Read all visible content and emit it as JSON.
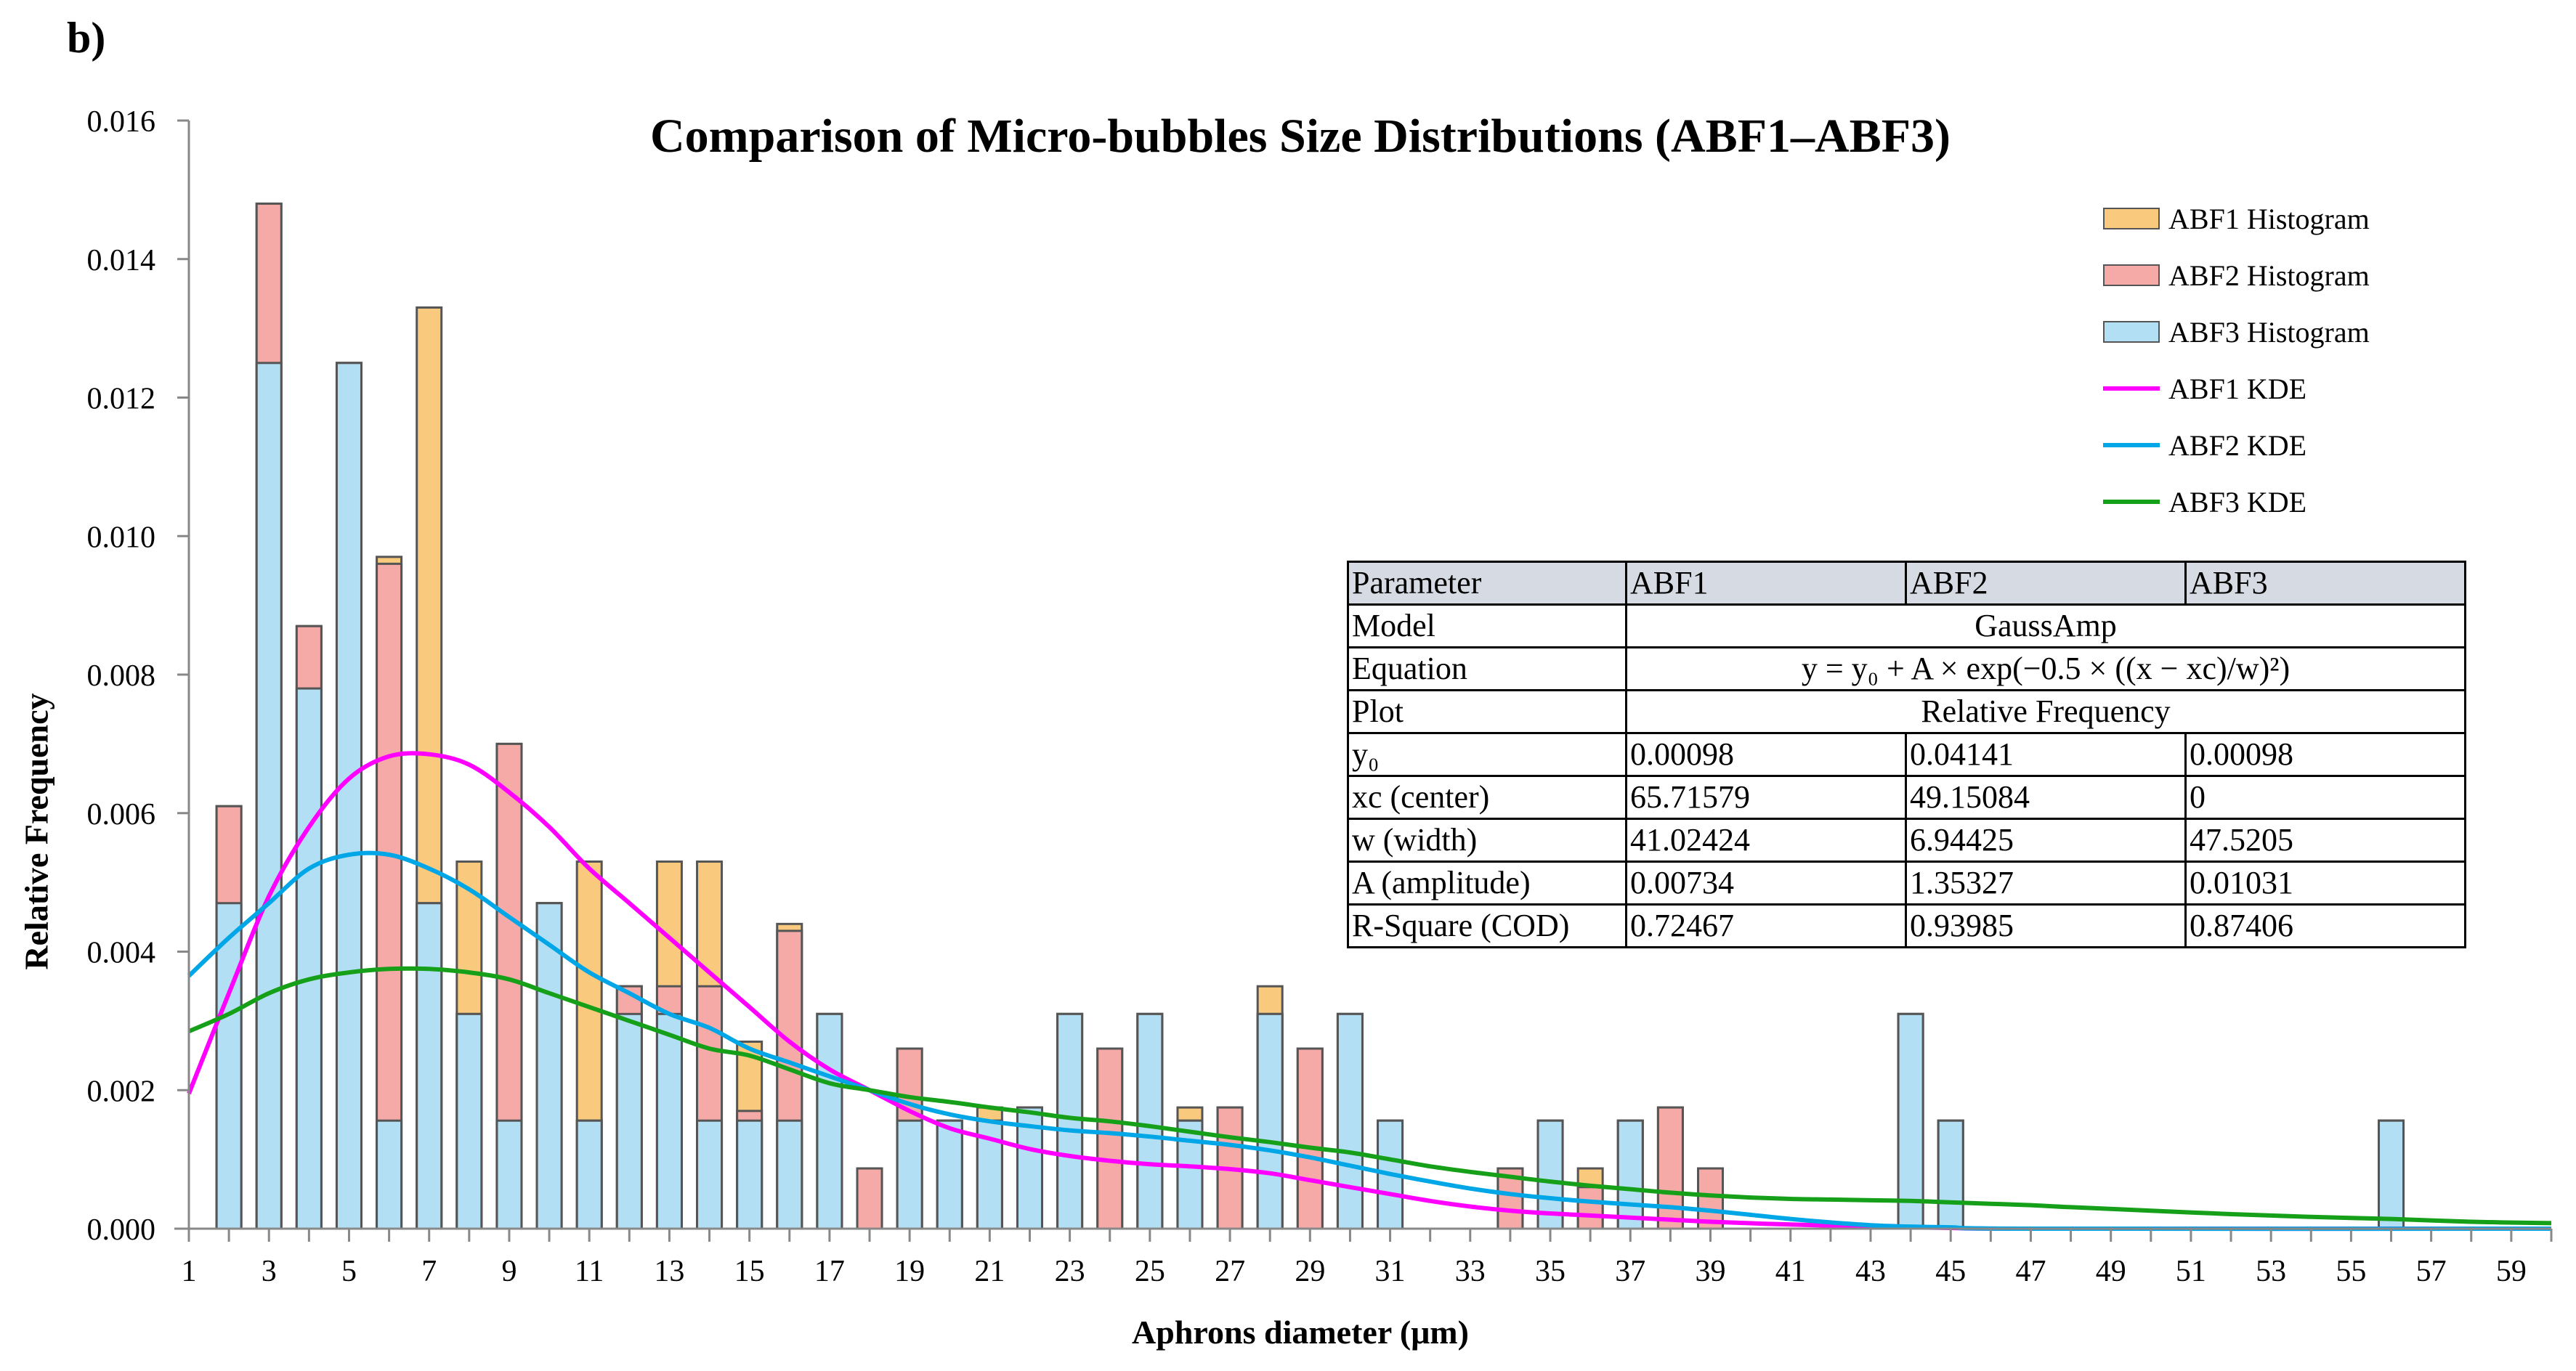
{
  "panel_label": "b)",
  "chart_data": {
    "type": "bar",
    "title": "Comparison of Micro-bubbles Size Distributions (ABF1–ABF3)",
    "xlabel": "Aphrons diameter (μm)",
    "ylabel": "Relative Frequency",
    "xlim": [
      1,
      60
    ],
    "ylim": [
      0,
      0.016
    ],
    "x_ticks": [
      1,
      3,
      5,
      7,
      9,
      11,
      13,
      15,
      17,
      19,
      21,
      23,
      25,
      27,
      29,
      31,
      33,
      35,
      37,
      39,
      41,
      43,
      45,
      47,
      49,
      51,
      53,
      55,
      57,
      59
    ],
    "y_ticks": [
      "0.000",
      "0.002",
      "0.004",
      "0.006",
      "0.008",
      "0.010",
      "0.012",
      "0.014",
      "0.016"
    ],
    "colors": {
      "abf1_hist": "#f9c97e",
      "abf2_hist": "#f5aaa8",
      "abf3_hist": "#b3dff5",
      "bar_edge": "#555555",
      "abf1_kde": "#ff00ff",
      "abf2_kde": "#00a6e6",
      "abf3_kde": "#16a01a"
    },
    "legend": [
      {
        "label": "ABF1 Histogram",
        "kind": "bar",
        "color": "#f9c97e"
      },
      {
        "label": "ABF2 Histogram",
        "kind": "bar",
        "color": "#f5aaa8"
      },
      {
        "label": "ABF3 Histogram",
        "kind": "bar",
        "color": "#b3dff5"
      },
      {
        "label": "ABF1 KDE",
        "kind": "line",
        "color": "#ff00ff"
      },
      {
        "label": "ABF2 KDE",
        "kind": "line",
        "color": "#00a6e6"
      },
      {
        "label": "ABF3 KDE",
        "kind": "line",
        "color": "#16a01a"
      }
    ],
    "bars": [
      {
        "x": 2,
        "abf3": 0.0047,
        "abf2": 0.0061,
        "abf1": 0.0061
      },
      {
        "x": 3,
        "abf3": 0.0125,
        "abf2": 0.0148,
        "abf1": 0.0148
      },
      {
        "x": 4,
        "abf3": 0.0078,
        "abf2": 0.0087,
        "abf1": 0.0087
      },
      {
        "x": 5,
        "abf3": 0.0125,
        "abf2": 0.0125,
        "abf1": 0.0125
      },
      {
        "x": 6,
        "abf3": 0.00156,
        "abf2": 0.0096,
        "abf1": 0.0097
      },
      {
        "x": 7,
        "abf3": 0.0047,
        "abf2": 0.0047,
        "abf1": 0.0133
      },
      {
        "x": 8,
        "abf3": 0.0031,
        "abf2": 0.0031,
        "abf1": 0.0053
      },
      {
        "x": 9,
        "abf3": 0.00156,
        "abf2": 0.007,
        "abf1": 0.007
      },
      {
        "x": 10,
        "abf3": 0.0047,
        "abf2": 0.0047,
        "abf1": 0.0047
      },
      {
        "x": 11,
        "abf3": 0.00156,
        "abf2": 0.00156,
        "abf1": 0.0053
      },
      {
        "x": 12,
        "abf3": 0.0031,
        "abf2": 0.0035,
        "abf1": 0.0035
      },
      {
        "x": 13,
        "abf3": 0.0031,
        "abf2": 0.0035,
        "abf1": 0.0053
      },
      {
        "x": 14,
        "abf3": 0.00156,
        "abf2": 0.0035,
        "abf1": 0.0053
      },
      {
        "x": 15,
        "abf3": 0.00156,
        "abf2": 0.0017,
        "abf1": 0.0027
      },
      {
        "x": 16,
        "abf3": 0.00156,
        "abf2": 0.0043,
        "abf1": 0.0044
      },
      {
        "x": 17,
        "abf3": 0.0031,
        "abf2": 0.0031,
        "abf1": 0.0031
      },
      {
        "x": 18,
        "abf3": 0,
        "abf2": 0.00087,
        "abf1": 0.00087
      },
      {
        "x": 19,
        "abf3": 0.00156,
        "abf2": 0.0026,
        "abf1": 0.0026
      },
      {
        "x": 20,
        "abf3": 0.00156,
        "abf2": 0.00156,
        "abf1": 0.00156
      },
      {
        "x": 21,
        "abf3": 0.00156,
        "abf2": 0.00156,
        "abf1": 0.00175
      },
      {
        "x": 22,
        "abf3": 0.00175,
        "abf2": 0.00175,
        "abf1": 0.00175
      },
      {
        "x": 23,
        "abf3": 0.0031,
        "abf2": 0.0031,
        "abf1": 0.0031
      },
      {
        "x": 24,
        "abf3": 0,
        "abf2": 0.0026,
        "abf1": 0.0026
      },
      {
        "x": 25,
        "abf3": 0.0031,
        "abf2": 0.0031,
        "abf1": 0.0031
      },
      {
        "x": 26,
        "abf3": 0.00156,
        "abf2": 0.00156,
        "abf1": 0.00175
      },
      {
        "x": 27,
        "abf3": 0,
        "abf2": 0.00175,
        "abf1": 0.00175
      },
      {
        "x": 28,
        "abf3": 0.0031,
        "abf2": 0.0031,
        "abf1": 0.0035
      },
      {
        "x": 29,
        "abf3": 0,
        "abf2": 0.0026,
        "abf1": 0.0026
      },
      {
        "x": 30,
        "abf3": 0.0031,
        "abf2": 0.0031,
        "abf1": 0.0031
      },
      {
        "x": 31,
        "abf3": 0.00156,
        "abf2": 0.00156,
        "abf1": 0.00156
      },
      {
        "x": 34,
        "abf3": 0,
        "abf2": 0.00087,
        "abf1": 0.00087
      },
      {
        "x": 35,
        "abf3": 0.00156,
        "abf2": 0.00156,
        "abf1": 0.00156
      },
      {
        "x": 36,
        "abf3": 0,
        "abf2": 0.0006,
        "abf1": 0.00087
      },
      {
        "x": 37,
        "abf3": 0.00156,
        "abf2": 0.00156,
        "abf1": 0.00156
      },
      {
        "x": 38,
        "abf3": 0,
        "abf2": 0.00175,
        "abf1": 0.00175
      },
      {
        "x": 39,
        "abf3": 0,
        "abf2": 0.00087,
        "abf1": 0.00087
      },
      {
        "x": 44,
        "abf3": 0.0031,
        "abf2": 0.0031,
        "abf1": 0.0031
      },
      {
        "x": 45,
        "abf3": 0.00156,
        "abf2": 0.00156,
        "abf1": 0.00156
      },
      {
        "x": 56,
        "abf3": 0.00156,
        "abf2": 0.00156,
        "abf1": 0.00156
      }
    ],
    "kde_series": [
      {
        "name": "ABF1 KDE",
        "color": "#ff00ff",
        "points": [
          [
            1,
            0.00195
          ],
          [
            2,
            0.0034
          ],
          [
            3,
            0.0048
          ],
          [
            4,
            0.0058
          ],
          [
            5,
            0.0065
          ],
          [
            6,
            0.00682
          ],
          [
            7,
            0.00685
          ],
          [
            8,
            0.0067
          ],
          [
            9,
            0.0063
          ],
          [
            10,
            0.0058
          ],
          [
            11,
            0.0052
          ],
          [
            12,
            0.0047
          ],
          [
            13,
            0.0042
          ],
          [
            14,
            0.0037
          ],
          [
            15,
            0.0032
          ],
          [
            16,
            0.0027
          ],
          [
            17,
            0.0023
          ],
          [
            18,
            0.002
          ],
          [
            19,
            0.0017
          ],
          [
            20,
            0.00145
          ],
          [
            21,
            0.0013
          ],
          [
            22,
            0.00115
          ],
          [
            23,
            0.00105
          ],
          [
            24,
            0.00098
          ],
          [
            25,
            0.00093
          ],
          [
            26,
            0.0009
          ],
          [
            27,
            0.00086
          ],
          [
            28,
            0.0008
          ],
          [
            29,
            0.0007
          ],
          [
            30,
            0.0006
          ],
          [
            31,
            0.0005
          ],
          [
            32,
            0.0004
          ],
          [
            33,
            0.00032
          ],
          [
            34,
            0.00026
          ],
          [
            35,
            0.00022
          ],
          [
            36,
            0.00019
          ],
          [
            37,
            0.00016
          ],
          [
            38,
            0.00013
          ],
          [
            39,
            0.0001
          ],
          [
            41,
            6e-05
          ],
          [
            43,
            3e-05
          ],
          [
            45,
            1e-05
          ],
          [
            47,
            0.0
          ],
          [
            60,
            0.0
          ]
        ]
      },
      {
        "name": "ABF2 KDE",
        "color": "#00a6e6",
        "points": [
          [
            1,
            0.00365
          ],
          [
            2,
            0.0042
          ],
          [
            3,
            0.0047
          ],
          [
            4,
            0.0052
          ],
          [
            5,
            0.0054
          ],
          [
            6,
            0.0054
          ],
          [
            7,
            0.0052
          ],
          [
            8,
            0.0049
          ],
          [
            9,
            0.0045
          ],
          [
            10,
            0.0041
          ],
          [
            11,
            0.0037
          ],
          [
            12,
            0.0034
          ],
          [
            13,
            0.0031
          ],
          [
            14,
            0.0029
          ],
          [
            15,
            0.0026
          ],
          [
            16,
            0.0024
          ],
          [
            17,
            0.0022
          ],
          [
            18,
            0.002
          ],
          [
            19,
            0.0018
          ],
          [
            20,
            0.00165
          ],
          [
            21,
            0.00155
          ],
          [
            22,
            0.00148
          ],
          [
            23,
            0.00142
          ],
          [
            24,
            0.00138
          ],
          [
            25,
            0.00133
          ],
          [
            26,
            0.00127
          ],
          [
            27,
            0.00121
          ],
          [
            28,
            0.00113
          ],
          [
            29,
            0.00103
          ],
          [
            30,
            0.00091
          ],
          [
            31,
            0.00079
          ],
          [
            32,
            0.00068
          ],
          [
            33,
            0.00058
          ],
          [
            34,
            0.0005
          ],
          [
            35,
            0.00044
          ],
          [
            36,
            0.00039
          ],
          [
            37,
            0.00035
          ],
          [
            38,
            0.00031
          ],
          [
            39,
            0.00026
          ],
          [
            40,
            0.0002
          ],
          [
            41,
            0.00014
          ],
          [
            42,
            9e-05
          ],
          [
            43,
            5e-05
          ],
          [
            44,
            3e-05
          ],
          [
            45,
            2e-05
          ],
          [
            47,
            0.0
          ],
          [
            60,
            0.0
          ]
        ]
      },
      {
        "name": "ABF3 KDE",
        "color": "#16a01a",
        "points": [
          [
            1,
            0.00285
          ],
          [
            2,
            0.0031
          ],
          [
            3,
            0.0034
          ],
          [
            4,
            0.0036
          ],
          [
            5,
            0.0037
          ],
          [
            6,
            0.00375
          ],
          [
            7,
            0.00375
          ],
          [
            8,
            0.0037
          ],
          [
            9,
            0.0036
          ],
          [
            10,
            0.0034
          ],
          [
            11,
            0.0032
          ],
          [
            12,
            0.003
          ],
          [
            13,
            0.0028
          ],
          [
            14,
            0.0026
          ],
          [
            15,
            0.0025
          ],
          [
            16,
            0.0023
          ],
          [
            17,
            0.0021
          ],
          [
            18,
            0.002
          ],
          [
            19,
            0.0019
          ],
          [
            20,
            0.00183
          ],
          [
            21,
            0.00175
          ],
          [
            22,
            0.00168
          ],
          [
            23,
            0.0016
          ],
          [
            24,
            0.00155
          ],
          [
            25,
            0.00148
          ],
          [
            26,
            0.0014
          ],
          [
            27,
            0.00132
          ],
          [
            28,
            0.00125
          ],
          [
            29,
            0.00117
          ],
          [
            30,
            0.0011
          ],
          [
            31,
            0.001
          ],
          [
            32,
            0.0009
          ],
          [
            33,
            0.00082
          ],
          [
            34,
            0.00075
          ],
          [
            35,
            0.00068
          ],
          [
            36,
            0.00062
          ],
          [
            37,
            0.00057
          ],
          [
            38,
            0.00052
          ],
          [
            39,
            0.00048
          ],
          [
            40,
            0.00045
          ],
          [
            41,
            0.00043
          ],
          [
            42,
            0.00042
          ],
          [
            43,
            0.00041
          ],
          [
            44,
            0.0004
          ],
          [
            45,
            0.00038
          ],
          [
            46,
            0.00036
          ],
          [
            47,
            0.00034
          ],
          [
            48,
            0.00031
          ],
          [
            50,
            0.00026
          ],
          [
            52,
            0.00021
          ],
          [
            54,
            0.00017
          ],
          [
            56,
            0.00014
          ],
          [
            58,
            0.0001
          ],
          [
            60,
            8e-05
          ]
        ]
      }
    ]
  },
  "params_table": {
    "header": [
      "Parameter",
      "ABF1",
      "ABF2",
      "ABF3"
    ],
    "model": {
      "label": "Model",
      "value": "GaussAmp"
    },
    "equation": {
      "label": "Equation",
      "value": "y = y₀ + A × exp(−0.5 × ((x − xc)/w)²)"
    },
    "plot": {
      "label": "Plot",
      "value": "Relative Frequency"
    },
    "rows": [
      {
        "label": "y₀",
        "abf1": "0.00098",
        "abf2": "0.04141",
        "abf3": "0.00098"
      },
      {
        "label": "xc (center)",
        "abf1": "65.71579",
        "abf2": "49.15084",
        "abf3": "0"
      },
      {
        "label": "w (width)",
        "abf1": "41.02424",
        "abf2": "6.94425",
        "abf3": "47.5205"
      },
      {
        "label": "A (amplitude)",
        "abf1": "0.00734",
        "abf2": "1.35327",
        "abf3": "0.01031"
      },
      {
        "label": "R-Square (COD)",
        "abf1": "0.72467",
        "abf2": "0.93985",
        "abf3": "0.87406"
      }
    ]
  }
}
